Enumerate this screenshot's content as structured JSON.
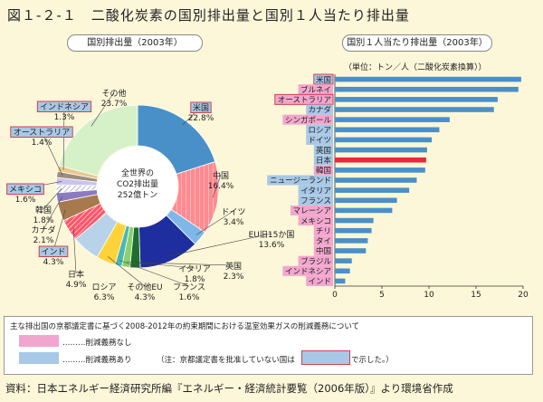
{
  "title": "図１-２-１　二酸化炭素の国別排出量と国別１人当たり排出量",
  "colors": {
    "pink": "#f2a6ce",
    "blue": "#a7c8e6",
    "highlight_border": "#d04050",
    "japan_bar": "#e8283c"
  },
  "chart_data": [
    {
      "type": "pie",
      "title": "国別排出量（2003年）",
      "center_label": [
        "全世界の",
        "CO2排出量",
        "252億トン"
      ],
      "slices": [
        {
          "name": "米国",
          "value": 22.8,
          "label": "22.8%",
          "color": "#4a90c8",
          "highlight": true
        },
        {
          "name": "中国",
          "value": 16.4,
          "label": "16.4%",
          "color": "#ff8a8f",
          "pattern": "pink-lines"
        },
        {
          "name": "ドイツ",
          "value": 3.4,
          "label": "3.4%",
          "color": "#7fb8e8"
        },
        {
          "name": "EU旧15か国",
          "value": 13.6,
          "label": "13.6%",
          "color": "#1e2e9e"
        },
        {
          "name": "英国",
          "value": 2.3,
          "label": "2.3%",
          "color": "#1e6e2e"
        },
        {
          "name": "イタリア",
          "value": 1.8,
          "label": "1.8%",
          "color": "#8cd06e"
        },
        {
          "name": "フランス",
          "value": 1.6,
          "label": "1.6%",
          "color": "#4ab8b0"
        },
        {
          "name": "その他EU",
          "value": 4.3,
          "label": "4.3%",
          "color": "#ffd23a"
        },
        {
          "name": "ロシア",
          "value": 6.3,
          "label": "6.3%",
          "color": "#b8d2ea"
        },
        {
          "name": "日本",
          "value": 4.9,
          "label": "4.9%",
          "color": "#ff5468",
          "pattern": "white-lines"
        },
        {
          "name": "インド",
          "value": 4.3,
          "label": "4.3%",
          "color": "#a67a4e",
          "highlight": true
        },
        {
          "name": "カナダ",
          "value": 2.1,
          "label": "2.1%",
          "color": "#8a7ac0"
        },
        {
          "name": "韓国",
          "value": 1.8,
          "label": "1.8%",
          "color": "#ffffff",
          "pattern": "grey-lines"
        },
        {
          "name": "メキシコ",
          "value": 1.6,
          "label": "1.6%",
          "color": "#c9c3ee",
          "highlight": true
        },
        {
          "name": "オーストラリア",
          "value": 1.4,
          "label": "1.4%",
          "color": "#9a8f7a",
          "highlight": true
        },
        {
          "name": "インドネシア",
          "value": 1.3,
          "label": "1.3%",
          "color": "#e9c98a",
          "highlight": true
        },
        {
          "name": "その他",
          "value": 23.7,
          "label": "23.7%",
          "color": "#d6f0c8"
        }
      ]
    },
    {
      "type": "bar",
      "orientation": "horizontal",
      "title": "国別１人当たり排出量（2003年）",
      "unit_note": "（単位：トン／人（二酸化炭素換算））",
      "categories": [
        "米国",
        "ブルネイ",
        "オーストラリア",
        "カナダ",
        "シンガポール",
        "ロシア",
        "ドイツ",
        "英国",
        "日本",
        "韓国",
        "ニュージーランド",
        "イタリア",
        "フランス",
        "マレーシア",
        "メキシコ",
        "チリ",
        "タイ",
        "中国",
        "ブラジル",
        "インドネシア",
        "インド"
      ],
      "values": [
        19.8,
        19.5,
        17.3,
        16.9,
        12.2,
        11.1,
        10.3,
        9.8,
        9.7,
        9.6,
        8.7,
        7.9,
        6.6,
        6.1,
        4.1,
        3.9,
        3.5,
        3.3,
        1.8,
        1.6,
        1.1
      ],
      "label_group": [
        "blue",
        "pink",
        "pink",
        "blue",
        "pink",
        "blue",
        "blue",
        "blue",
        "blue",
        "pink",
        "blue",
        "blue",
        "blue",
        "pink",
        "pink",
        "pink",
        "pink",
        "pink",
        "pink",
        "pink",
        "pink"
      ],
      "highlight": [
        true,
        false,
        true,
        false,
        false,
        false,
        false,
        false,
        false,
        false,
        false,
        false,
        false,
        false,
        false,
        false,
        false,
        false,
        false,
        false,
        false
      ],
      "xlim": [
        0,
        20
      ],
      "xticks": [
        "0",
        "5",
        "10",
        "15",
        "20"
      ]
    }
  ],
  "legend": {
    "heading": "主な排出国の京都議定書に基づく2008-2012年の約束期間における温室効果ガスの削減義務について",
    "pink_label": "………削減義務なし",
    "blue_label": "………削減義務あり",
    "note_pre": "（注：京都議定書を批准していない国は",
    "note_post": "で示した。）"
  },
  "source": "資料：日本エネルギー経済研究所編『エネルギー・経済統計要覧（2006年版）』より環境省作成"
}
